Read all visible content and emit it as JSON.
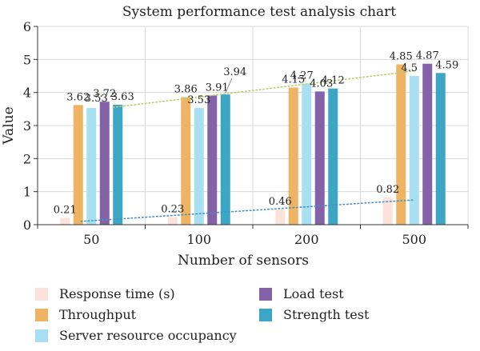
{
  "chart_data": {
    "type": "bar",
    "title": "System performance test analysis chart",
    "xlabel": "Number of sensors",
    "ylabel": "Value",
    "ylim": [
      0,
      6
    ],
    "yticks": [
      "0",
      "1",
      "2",
      "3",
      "4",
      "5",
      "6"
    ],
    "categories": [
      "50",
      "100",
      "200",
      "500"
    ],
    "grid": true,
    "legend_position": "bottom",
    "series": [
      {
        "name": "Response time (s)",
        "color": "#fbe3dc",
        "values": [
          0.21,
          0.23,
          0.46,
          0.82
        ],
        "labels": [
          "0.21",
          "0.23",
          "0.46",
          "0.82"
        ]
      },
      {
        "name": "Throughput",
        "color": "#efb463",
        "values": [
          3.62,
          3.86,
          4.15,
          4.85
        ],
        "labels": [
          "3.62",
          "3.86",
          "4.15",
          "4.85"
        ]
      },
      {
        "name": "Server resource occupancy",
        "color": "#a9e0f1",
        "values": [
          3.53,
          3.53,
          4.27,
          4.5
        ],
        "labels": [
          "3.53",
          "3.53",
          "4.27",
          "4.5"
        ]
      },
      {
        "name": "Load test",
        "color": "#8362a8",
        "values": [
          3.72,
          3.91,
          4.03,
          4.87
        ],
        "labels": [
          "3.72",
          "3.91",
          "4.03",
          "4.87"
        ]
      },
      {
        "name": "Strength test",
        "color": "#3da6c4",
        "values": [
          3.63,
          3.94,
          4.12,
          4.59
        ],
        "labels": [
          "3.63",
          "3.94",
          "4.12",
          "4.59"
        ]
      }
    ],
    "trendlines": [
      {
        "series": "Response time (s)",
        "color": "#4a8fc4",
        "from": 0.1,
        "to": 0.75
      },
      {
        "series": "Throughput",
        "color": "#b8cf6e",
        "from": 3.55,
        "to": 4.65
      }
    ]
  }
}
